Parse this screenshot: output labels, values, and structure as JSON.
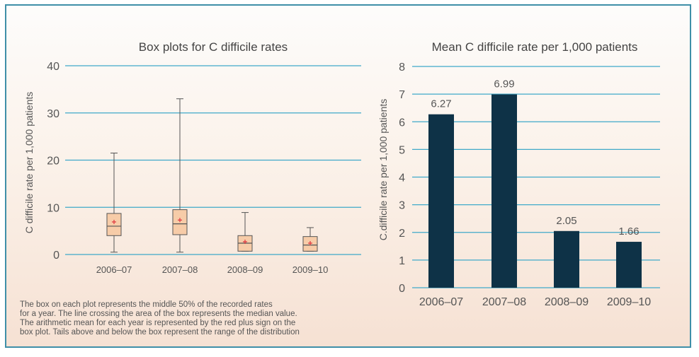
{
  "chart_data": [
    {
      "type": "box",
      "title": "Box plots for C difficile rates",
      "ylabel": "C difficile rate per 1,000 patients",
      "ylim": [
        0,
        40
      ],
      "yticks": [
        0,
        10,
        20,
        30,
        40
      ],
      "categories": [
        "2006–07",
        "2007–08",
        "2008–09",
        "2009–10"
      ],
      "boxes": [
        {
          "min": 0.5,
          "q1": 4.0,
          "median": 6.0,
          "q3": 8.7,
          "max": 21.5,
          "mean": 6.9
        },
        {
          "min": 0.5,
          "q1": 4.2,
          "median": 6.5,
          "q3": 9.5,
          "max": 33.0,
          "mean": 7.3
        },
        {
          "min": 0.7,
          "q1": 0.7,
          "median": 2.4,
          "q3": 4.0,
          "max": 8.9,
          "mean": 2.7
        },
        {
          "min": 0.7,
          "q1": 0.7,
          "median": 2.0,
          "q3": 3.8,
          "max": 5.7,
          "mean": 2.4
        }
      ],
      "colors": {
        "box_fill": "#f7cca8",
        "box_stroke": "#555555",
        "mean_marker": "#e0303a",
        "grid": "#3fa9c9"
      },
      "note": "The box on each plot represents the middle 50% of the recorded rates\nfor a year. The line crossing the area of the box represents the median value.\nThe arithmetic mean for each year is represented by the red plus sign on the\nbox plot. Tails above and below the box represent the range of the distribution"
    },
    {
      "type": "bar",
      "title": "Mean C difficile rate per 1,000 patients",
      "ylabel": "C.difficile rate per 1,000 patients",
      "ylim": [
        0,
        8
      ],
      "yticks": [
        0,
        1,
        2,
        3,
        4,
        5,
        6,
        7,
        8
      ],
      "categories": [
        "2006–07",
        "2007–08",
        "2008–09",
        "2009–10"
      ],
      "values": [
        6.27,
        6.99,
        2.05,
        1.66
      ],
      "value_labels": [
        "6.27",
        "6.99",
        "2.05",
        "1.66"
      ],
      "colors": {
        "bar": "#0e3247",
        "grid": "#3fa9c9"
      }
    }
  ]
}
